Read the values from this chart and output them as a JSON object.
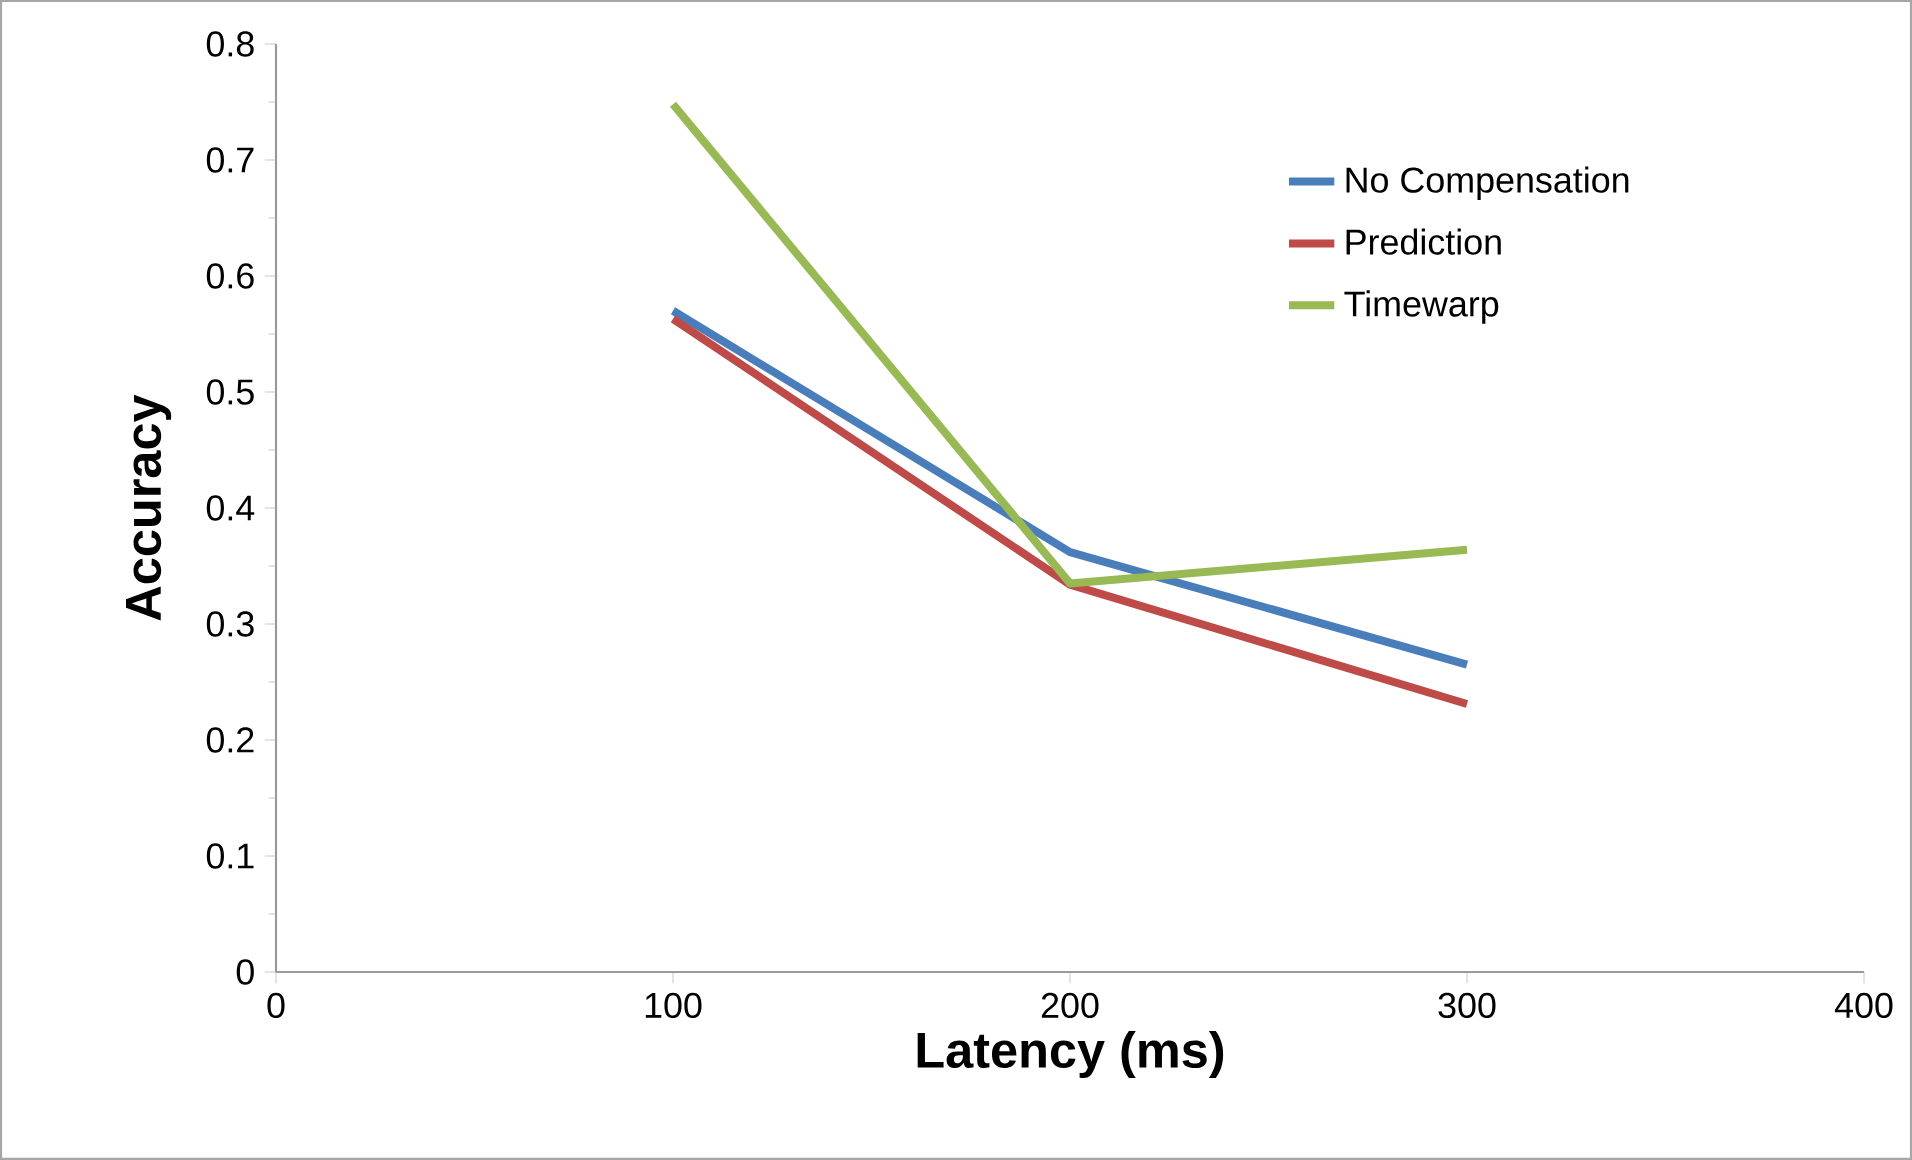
{
  "chart_data": {
    "type": "line",
    "xlabel": "Latency (ms)",
    "ylabel": "Accuracy",
    "x": [
      100,
      200,
      300
    ],
    "series": [
      {
        "name": "No Compensation",
        "color": "#4a7ebb",
        "values": [
          0.57,
          0.362,
          0.265
        ]
      },
      {
        "name": "Prediction",
        "color": "#be4b48",
        "values": [
          0.563,
          0.334,
          0.231
        ]
      },
      {
        "name": "Timewarp",
        "color": "#98b954",
        "values": [
          0.748,
          0.335,
          0.364
        ]
      }
    ],
    "xlim": [
      0,
      400
    ],
    "ylim": [
      0,
      0.8
    ],
    "xticks": [
      0,
      100,
      200,
      300,
      400
    ],
    "yticks": [
      0,
      0.1,
      0.2,
      0.3,
      0.4,
      0.5,
      0.6,
      0.7,
      0.8
    ],
    "grid": false,
    "legend": "top right",
    "marker": "none",
    "line_style": "solid"
  }
}
